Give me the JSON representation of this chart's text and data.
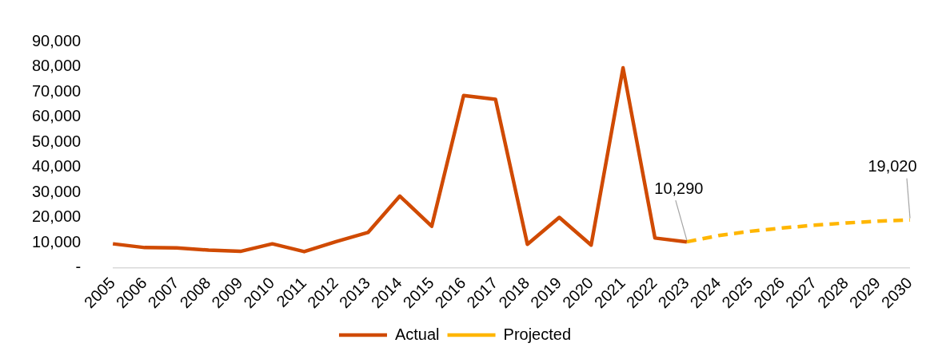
{
  "chart_data": {
    "type": "line",
    "categories": [
      "2005",
      "2006",
      "2007",
      "2008",
      "2009",
      "2010",
      "2011",
      "2012",
      "2013",
      "2014",
      "2015",
      "2016",
      "2017",
      "2018",
      "2019",
      "2020",
      "2021",
      "2022",
      "2023",
      "2024",
      "2025",
      "2026",
      "2027",
      "2028",
      "2029",
      "2030"
    ],
    "series": [
      {
        "name": "Actual",
        "color": "#d04a02",
        "line_style": "solid",
        "values": [
          9500,
          8000,
          7900,
          7000,
          6500,
          9500,
          6400,
          10400,
          14000,
          28500,
          16500,
          68500,
          67000,
          9300,
          20000,
          9000,
          79500,
          11800,
          10290,
          null,
          null,
          null,
          null,
          null,
          null,
          null
        ]
      },
      {
        "name": "Projected",
        "color": "#ffb600",
        "line_style": "dashed",
        "values": [
          null,
          null,
          null,
          null,
          null,
          null,
          null,
          null,
          null,
          null,
          null,
          null,
          null,
          null,
          null,
          null,
          null,
          null,
          10290,
          12800,
          14500,
          15800,
          16900,
          17800,
          18500,
          19020
        ]
      }
    ],
    "ylim": [
      0,
      90000
    ],
    "yticks": [
      {
        "value": 0,
        "label": "-"
      },
      {
        "value": 10000,
        "label": "10,000"
      },
      {
        "value": 20000,
        "label": "20,000"
      },
      {
        "value": 30000,
        "label": "30,000"
      },
      {
        "value": 40000,
        "label": "40,000"
      },
      {
        "value": 50000,
        "label": "50,000"
      },
      {
        "value": 60000,
        "label": "60,000"
      },
      {
        "value": 70000,
        "label": "70,000"
      },
      {
        "value": 80000,
        "label": "80,000"
      },
      {
        "value": 90000,
        "label": "90,000"
      }
    ],
    "annotations": [
      {
        "text": "10,290",
        "x": "2023",
        "y": 10290
      },
      {
        "text": "19,020",
        "x": "2030",
        "y": 19020
      }
    ],
    "grid": false,
    "legend": "bottom",
    "marker": "none"
  }
}
